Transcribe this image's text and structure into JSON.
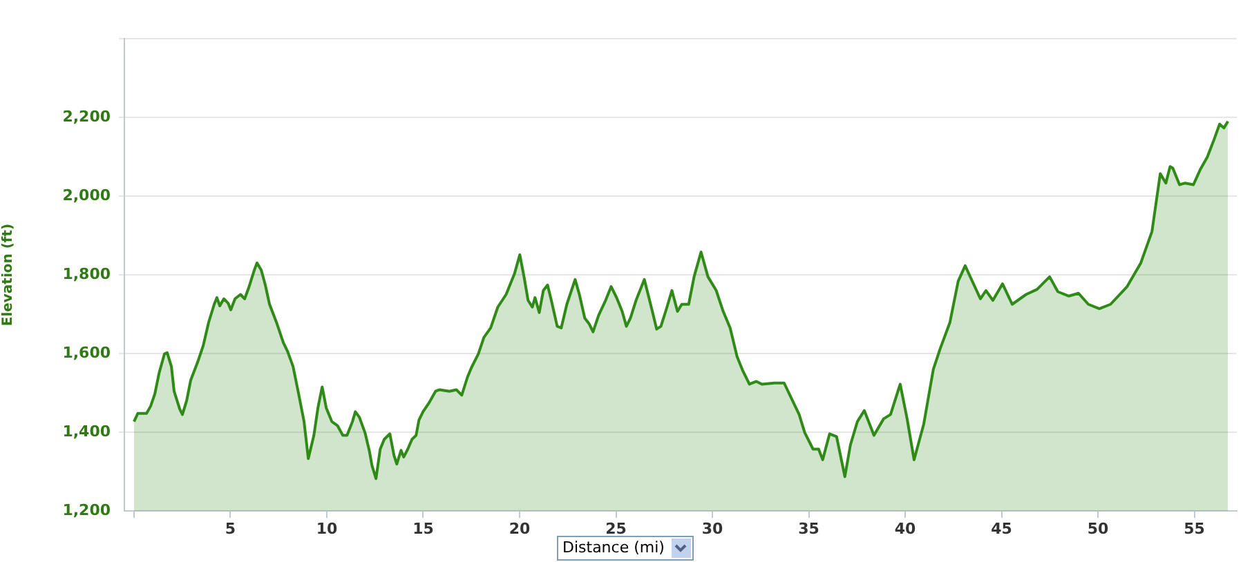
{
  "chart_data": {
    "type": "area",
    "ylabel": "Elevation (ft)",
    "xlabel": "Distance (mi)",
    "xlim": [
      -0.5,
      57.2
    ],
    "xticks": [
      {
        "value": 0,
        "label": null
      },
      5,
      10,
      15,
      20,
      25,
      30,
      35,
      40,
      45,
      50,
      55
    ],
    "ylim": [
      1200,
      2400
    ],
    "yticks": [
      {
        "value": 1200,
        "label": "1,200"
      },
      {
        "value": 1400,
        "label": "1,400"
      },
      {
        "value": 1600,
        "label": "1,600"
      },
      {
        "value": 1800,
        "label": "1,800"
      },
      {
        "value": 2000,
        "label": "2,000"
      },
      {
        "value": 2200,
        "label": "2,200"
      },
      {
        "value": 2400,
        "label": null
      }
    ],
    "grid": "y",
    "legend": false,
    "marker": "none",
    "series": [
      {
        "color": "#2f8a17",
        "x": [
          0,
          0.2,
          0.65,
          0.86,
          1.08,
          1.3,
          1.58,
          1.72,
          1.94,
          2.08,
          2.37,
          2.51,
          2.73,
          2.94,
          3.3,
          3.59,
          3.87,
          4.16,
          4.3,
          4.45,
          4.66,
          4.88,
          5.02,
          5.24,
          5.52,
          5.74,
          5.95,
          6.24,
          6.38,
          6.6,
          6.81,
          7.03,
          7.39,
          7.75,
          7.96,
          8.25,
          8.54,
          8.82,
          9.04,
          9.33,
          9.54,
          9.76,
          9.97,
          10.26,
          10.55,
          10.83,
          11.05,
          11.33,
          11.48,
          11.69,
          11.98,
          12.2,
          12.34,
          12.55,
          12.77,
          12.98,
          13.27,
          13.49,
          13.63,
          13.85,
          13.99,
          14.2,
          14.42,
          14.63,
          14.78,
          14.99,
          15.28,
          15.64,
          15.85,
          16.36,
          16.72,
          17,
          17.29,
          17.5,
          17.86,
          18.15,
          18.5,
          18.87,
          19.3,
          19.73,
          20.01,
          20.23,
          20.44,
          20.66,
          20.8,
          21.02,
          21.23,
          21.45,
          21.66,
          21.95,
          22.16,
          22.45,
          22.88,
          23.1,
          23.38,
          23.6,
          23.81,
          24.1,
          24.46,
          24.75,
          25.03,
          25.32,
          25.54,
          25.75,
          26.04,
          26.47,
          26.83,
          27.11,
          27.33,
          27.62,
          27.9,
          28.19,
          28.41,
          28.77,
          29.05,
          29.41,
          29.77,
          30.2,
          30.56,
          30.92,
          31.28,
          31.57,
          31.92,
          32.28,
          32.57,
          33.21,
          33.72,
          34.5,
          34.79,
          35.22,
          35.51,
          35.72,
          36.08,
          36.44,
          36.87,
          37.16,
          37.52,
          37.88,
          38.38,
          38.88,
          39.24,
          39.74,
          40.1,
          40.46,
          40.96,
          41.46,
          41.82,
          42.32,
          42.75,
          43.11,
          43.9,
          44.19,
          44.55,
          45.05,
          45.55,
          46.27,
          46.84,
          47.49,
          47.92,
          48.49,
          48.99,
          49.5,
          50.07,
          50.65,
          51.51,
          52.22,
          52.8,
          53.23,
          53.52,
          53.74,
          53.88,
          54.23,
          54.52,
          54.95,
          55.31,
          55.67,
          56.03,
          56.31,
          56.53,
          56.74
        ],
        "values": [
          1427,
          1448,
          1448,
          1466,
          1497,
          1550,
          1599,
          1602,
          1567,
          1504,
          1459,
          1445,
          1480,
          1532,
          1578,
          1620,
          1679,
          1725,
          1742,
          1721,
          1739,
          1728,
          1711,
          1739,
          1750,
          1739,
          1767,
          1812,
          1830,
          1812,
          1774,
          1725,
          1679,
          1627,
          1606,
          1567,
          1497,
          1427,
          1333,
          1392,
          1462,
          1515,
          1462,
          1427,
          1417,
          1392,
          1392,
          1427,
          1452,
          1438,
          1399,
          1354,
          1316,
          1282,
          1357,
          1382,
          1396,
          1340,
          1319,
          1354,
          1337,
          1357,
          1382,
          1392,
          1431,
          1452,
          1473,
          1504,
          1508,
          1504,
          1508,
          1494,
          1539,
          1564,
          1599,
          1641,
          1665,
          1718,
          1750,
          1802,
          1851,
          1795,
          1735,
          1718,
          1742,
          1704,
          1760,
          1774,
          1732,
          1669,
          1665,
          1725,
          1788,
          1750,
          1690,
          1676,
          1655,
          1697,
          1735,
          1770,
          1742,
          1707,
          1669,
          1690,
          1735,
          1788,
          1718,
          1662,
          1669,
          1714,
          1760,
          1707,
          1725,
          1725,
          1795,
          1858,
          1795,
          1760,
          1707,
          1665,
          1592,
          1557,
          1522,
          1529,
          1522,
          1525,
          1525,
          1445,
          1399,
          1357,
          1357,
          1330,
          1396,
          1389,
          1287,
          1368,
          1427,
          1455,
          1392,
          1434,
          1445,
          1522,
          1434,
          1330,
          1420,
          1560,
          1613,
          1679,
          1784,
          1823,
          1739,
          1760,
          1735,
          1777,
          1725,
          1750,
          1763,
          1795,
          1757,
          1746,
          1753,
          1725,
          1714,
          1725,
          1770,
          1830,
          1910,
          2057,
          2033,
          2075,
          2071,
          2029,
          2033,
          2029,
          2068,
          2099,
          2145,
          2183,
          2173,
          2190
        ]
      }
    ]
  }
}
